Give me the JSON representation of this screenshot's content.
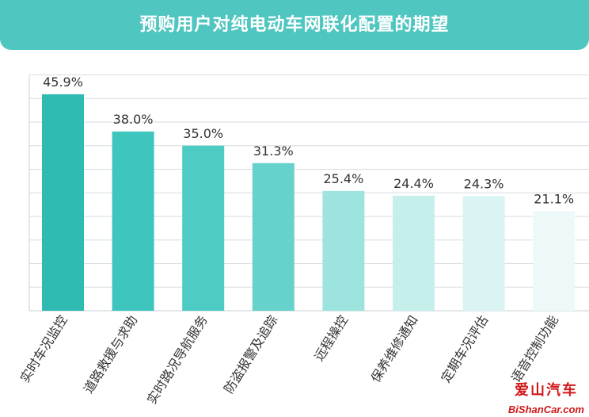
{
  "chart_data": {
    "type": "bar",
    "title": "预购用户对纯电动车网联化配置的期望",
    "categories": [
      "实时车况监控",
      "道路救援与求助",
      "实时路况导航服务",
      "防盗报警及追踪",
      "远程操控",
      "保养维修通知",
      "定期车况评估",
      "语音控制功能"
    ],
    "values": [
      45.9,
      38.0,
      35.0,
      31.3,
      25.4,
      24.4,
      24.3,
      21.1
    ],
    "value_labels": [
      "45.9%",
      "38.0%",
      "35.0%",
      "31.3%",
      "25.4%",
      "24.4%",
      "24.3%",
      "21.1%"
    ],
    "bar_colors": [
      "#2fbab2",
      "#3ec5bd",
      "#4ecbc3",
      "#66d2cb",
      "#9de3de",
      "#c6efec",
      "#d9f4f2",
      "#ecf9f8"
    ],
    "ylim": [
      0,
      50
    ],
    "grid": true,
    "grid_color": "#d6dde0"
  },
  "title_bar_color": "#4fc6c0",
  "watermark": {
    "cn": "爱山汽车",
    "en": "BiShanCar.com"
  }
}
